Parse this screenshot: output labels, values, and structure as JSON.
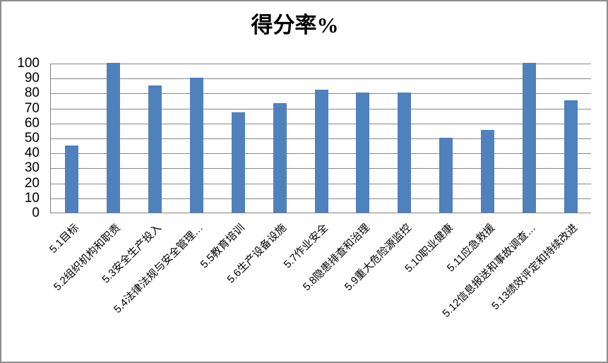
{
  "chart_data": {
    "type": "bar",
    "title": "得分率%",
    "categories": [
      "5.1目标",
      "5.2组织机构和职责",
      "5.3安全生产投入",
      "5.4法律法规与安全管理…",
      "5.5教育培训",
      "5.6生产设备设施",
      "5.7作业安全",
      "5.8隐患排查和治理",
      "5.9重大危险源监控",
      "5.10职业健康",
      "5.11应急救援",
      "5.12信息报送和事故调查…",
      "5.13绩效评定和持续改进"
    ],
    "values": [
      45,
      100,
      85,
      90,
      67,
      73,
      82,
      80,
      80,
      50,
      55,
      100,
      75
    ],
    "xlabel": "",
    "ylabel": "",
    "ylim": [
      0,
      100
    ],
    "yticks": [
      0,
      10,
      20,
      30,
      40,
      50,
      60,
      70,
      80,
      90,
      100
    ],
    "grid": "horizontal",
    "legend_position": "none",
    "colors": {
      "bar": "#4f81bd",
      "gridline": "#878787",
      "axis": "#808080",
      "frame": "#8e8e8e",
      "text": "#000000"
    }
  }
}
